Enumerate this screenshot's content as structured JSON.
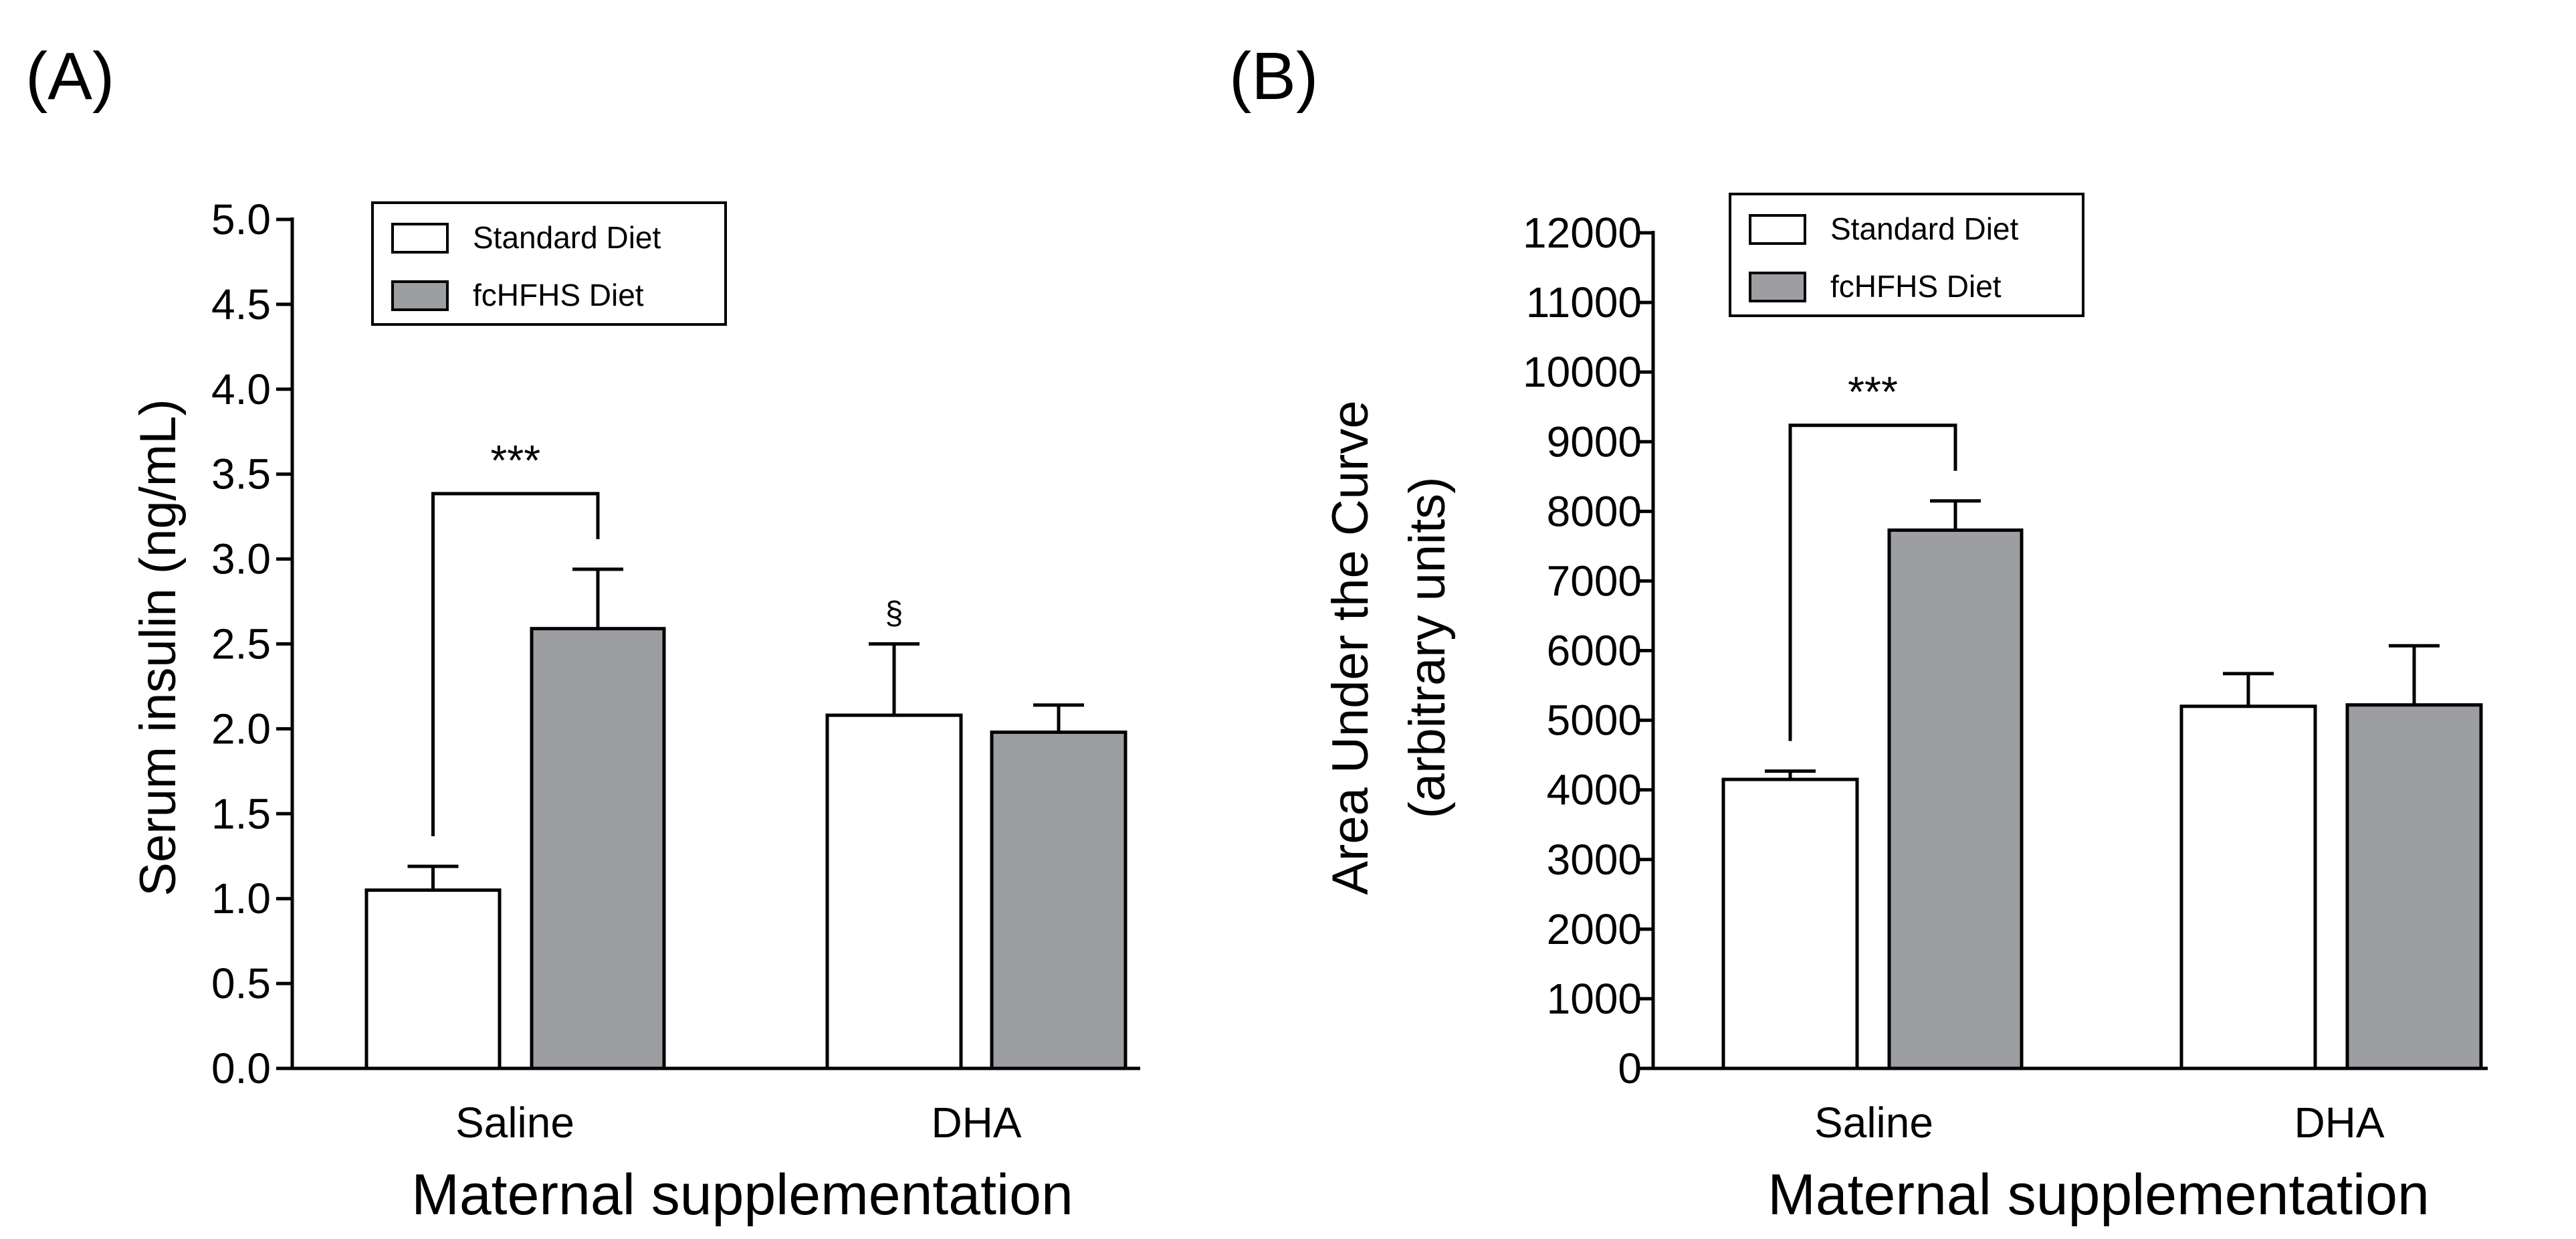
{
  "chart_data": [
    {
      "type": "bar",
      "panel_label": "(A)",
      "title": "",
      "xlabel": "Maternal supplementation",
      "ylabel": "Serum insulin (ng/mL)",
      "ylim": [
        0,
        5.0
      ],
      "yticks": [
        "0.0",
        "0.5",
        "1.0",
        "1.5",
        "2.0",
        "2.5",
        "3.0",
        "3.5",
        "4.0",
        "4.5",
        "5.0"
      ],
      "ytick_values": [
        0,
        0.5,
        1.0,
        1.5,
        2.0,
        2.5,
        3.0,
        3.5,
        4.0,
        4.5,
        5.0
      ],
      "categories": [
        "Saline",
        "DHA"
      ],
      "series": [
        {
          "name": "Standard Diet",
          "color": "#ffffff",
          "values": [
            1.05,
            2.08
          ],
          "errors": [
            0.14,
            0.42
          ]
        },
        {
          "name": "fcHFHS Diet",
          "color": "#9d9ea2",
          "values": [
            2.59,
            1.98
          ],
          "errors": [
            0.35,
            0.16
          ]
        }
      ],
      "legend": {
        "position": "top-left",
        "entries": [
          "Standard Diet",
          "fcHFHS Diet"
        ]
      },
      "annotations": [
        {
          "type": "bracket",
          "text": "***",
          "category": "Saline",
          "between": [
            "Standard Diet",
            "fcHFHS Diet"
          ]
        },
        {
          "type": "symbol",
          "text": "§",
          "category": "DHA",
          "series": "Standard Diet"
        }
      ]
    },
    {
      "type": "bar",
      "panel_label": "(B)",
      "title": "",
      "xlabel": "Maternal supplementation",
      "ylabel": [
        "Area Under the Curve",
        "(arbitrary units)"
      ],
      "ylim": [
        0,
        12000
      ],
      "yticks": [
        "0",
        "1000",
        "2000",
        "3000",
        "4000",
        "5000",
        "6000",
        "7000",
        "8000",
        "9000",
        "10000",
        "11000",
        "12000"
      ],
      "ytick_values": [
        0,
        1000,
        2000,
        3000,
        4000,
        5000,
        6000,
        7000,
        8000,
        9000,
        10000,
        11000,
        12000
      ],
      "categories": [
        "Saline",
        "DHA"
      ],
      "series": [
        {
          "name": "Standard Diet",
          "color": "#ffffff",
          "values": [
            4150,
            5200
          ],
          "errors": [
            120,
            470
          ]
        },
        {
          "name": "fcHFHS Diet",
          "color": "#9d9ea2",
          "values": [
            7730,
            5220
          ],
          "errors": [
            420,
            850
          ]
        }
      ],
      "legend": {
        "position": "top-left",
        "entries": [
          "Standard Diet",
          "fcHFHS Diet"
        ]
      },
      "annotations": [
        {
          "type": "bracket",
          "text": "***",
          "category": "Saline",
          "between": [
            "Standard Diet",
            "fcHFHS Diet"
          ]
        }
      ]
    }
  ]
}
